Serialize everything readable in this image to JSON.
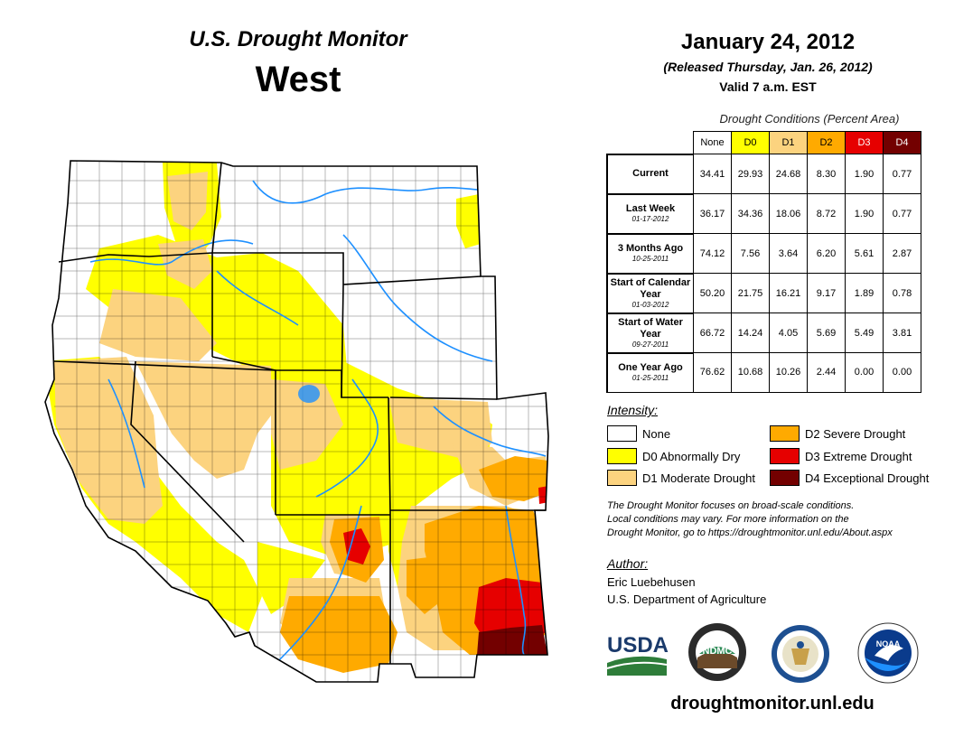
{
  "header": {
    "title": "U.S. Drought Monitor",
    "region": "West",
    "date": "January 24, 2012",
    "released": "(Released Thursday, Jan. 26, 2012)",
    "valid": "Valid 7 a.m. EST"
  },
  "table": {
    "caption": "Drought Conditions (Percent Area)",
    "columns": [
      "None",
      "D0",
      "D1",
      "D2",
      "D3",
      "D4"
    ],
    "column_colors": [
      "#ffffff",
      "#ffff00",
      "#fcd37f",
      "#ffaa00",
      "#e60000",
      "#730000"
    ],
    "rows": [
      {
        "label": "Current",
        "sub": "",
        "values": [
          "34.41",
          "29.93",
          "24.68",
          "8.30",
          "1.90",
          "0.77"
        ]
      },
      {
        "label": "Last Week",
        "sub": "01-17-2012",
        "values": [
          "36.17",
          "34.36",
          "18.06",
          "8.72",
          "1.90",
          "0.77"
        ]
      },
      {
        "label": "3 Months Ago",
        "sub": "10-25-2011",
        "values": [
          "74.12",
          "7.56",
          "3.64",
          "6.20",
          "5.61",
          "2.87"
        ]
      },
      {
        "label": "Start of Calendar Year",
        "sub": "01-03-2012",
        "values": [
          "50.20",
          "21.75",
          "16.21",
          "9.17",
          "1.89",
          "0.78"
        ]
      },
      {
        "label": "Start of Water Year",
        "sub": "09-27-2011",
        "values": [
          "66.72",
          "14.24",
          "4.05",
          "5.69",
          "5.49",
          "3.81"
        ]
      },
      {
        "label": "One Year Ago",
        "sub": "01-25-2011",
        "values": [
          "76.62",
          "10.68",
          "10.26",
          "2.44",
          "0.00",
          "0.00"
        ]
      }
    ]
  },
  "legend": {
    "title": "Intensity:",
    "items": [
      {
        "label": "None",
        "color": "#ffffff"
      },
      {
        "label": "D0 Abnormally Dry",
        "color": "#ffff00"
      },
      {
        "label": "D1 Moderate Drought",
        "color": "#fcd37f"
      },
      {
        "label": "D2 Severe Drought",
        "color": "#ffaa00"
      },
      {
        "label": "D3 Extreme Drought",
        "color": "#e60000"
      },
      {
        "label": "D4 Exceptional Drought",
        "color": "#730000"
      }
    ]
  },
  "note": {
    "line1": "The Drought Monitor focuses on broad-scale conditions.",
    "line2": "Local conditions may vary. For more information on the",
    "line3": "Drought Monitor, go to https://droughtmonitor.unl.edu/About.aspx"
  },
  "author": {
    "title": "Author:",
    "name": "Eric Luebehusen",
    "org": "U.S. Department of Agriculture"
  },
  "logos": {
    "usda": "USDA",
    "ndmc": "NDMC",
    "noaa": "NOAA"
  },
  "url": "droughtmonitor.unl.edu",
  "map": {
    "colors": {
      "none": "#ffffff",
      "d0": "#ffff00",
      "d1": "#fcd37f",
      "d2": "#ffaa00",
      "d3": "#e60000",
      "d4": "#730000",
      "water": "#1e90ff",
      "border": "#000000"
    }
  }
}
